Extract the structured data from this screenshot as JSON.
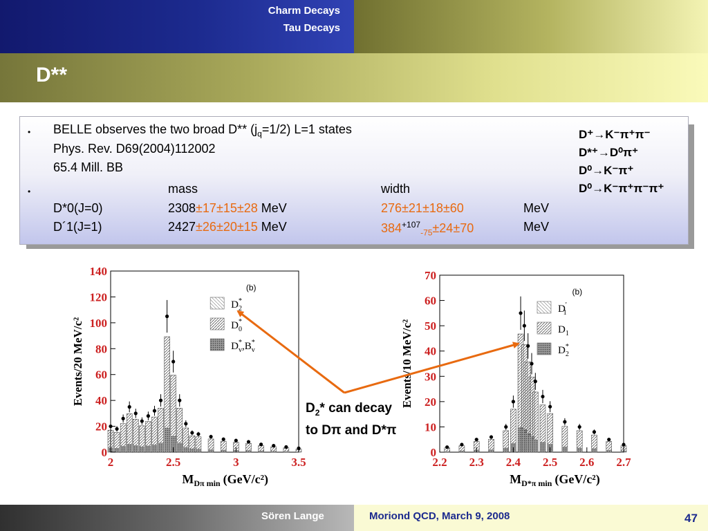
{
  "header": {
    "nav_items": [
      "Charm Decays",
      "Tau Decays"
    ],
    "title": "D**"
  },
  "infobox": {
    "line1_pre": "BELLE observes the two broad D** (j",
    "line1_sub": "q",
    "line1_post": "=1/2) L=1 states",
    "line2": "Phys. Rev. D69(2004)112002",
    "line3": "65.4 Mill. BB",
    "mass_header": "mass",
    "width_header": "width",
    "rows": [
      {
        "state": "D*0(J=0)",
        "mass_central": "2308",
        "mass_errors": "±17±15±28",
        "mass_unit": "MeV",
        "width_central": "276",
        "width_errors": "±21±18±60",
        "width_unit": "MeV"
      },
      {
        "state": "D´1(J=1)",
        "mass_central": "2427",
        "mass_errors": "±26±20±15",
        "mass_unit": "MeV",
        "width_central": "384",
        "width_sup": "+107",
        "width_sub": "-75",
        "width_errors": "±24±70",
        "width_unit": "MeV"
      }
    ]
  },
  "decay_modes": [
    "D⁺→K⁻π⁺π⁻",
    "D*⁺→D⁰π⁺",
    "D⁰→K⁻π⁺",
    "D⁰→K⁻π⁺π⁻π⁺"
  ],
  "annotation": {
    "line1_pre": "D",
    "line1_sub": "2",
    "line1_post": "* can decay",
    "line2": "to Dπ and D*π"
  },
  "colors": {
    "accent_orange": "#e86a10",
    "header_blue": "#1c2a8e",
    "plot_red": "#cc2020"
  },
  "chart_data": [
    {
      "type": "bar",
      "ylabel": "Events/20 MeV/c²",
      "xlabel": "M_Dπ min (GeV/c²)",
      "xlabel_main": "M",
      "xlabel_sub": "Dπ min",
      "xlabel_unit": "(GeV/c²)",
      "x_ticks": [
        "2",
        "2.5",
        "3",
        "3.5"
      ],
      "y_ticks": [
        "0",
        "20",
        "40",
        "60",
        "80",
        "100",
        "120",
        "140"
      ],
      "xlim": [
        2,
        3.5
      ],
      "ylim": [
        0,
        140
      ],
      "panel_label": "(b)",
      "legend": [
        {
          "label": "D*2",
          "main": "D",
          "sub": "2",
          "sup": "*"
        },
        {
          "label": "D*0",
          "main": "D",
          "sub": "0",
          "sup": "*"
        },
        {
          "label": "D*v,B*v",
          "main": "D",
          "sub": "v",
          "sup": "*",
          "extra": ",B",
          "extra_sub": "v",
          "extra_sup": "*"
        }
      ],
      "x": [
        2.0,
        2.05,
        2.1,
        2.15,
        2.2,
        2.25,
        2.3,
        2.35,
        2.4,
        2.45,
        2.5,
        2.55,
        2.6,
        2.65,
        2.7,
        2.8,
        2.9,
        3.0,
        3.1,
        3.2,
        3.3,
        3.4,
        3.5
      ],
      "values": [
        20,
        18,
        26,
        35,
        30,
        24,
        28,
        32,
        40,
        105,
        70,
        40,
        22,
        15,
        14,
        12,
        10,
        9,
        8,
        6,
        5,
        4,
        3
      ]
    },
    {
      "type": "bar",
      "ylabel": "Events/10 MeV/c²",
      "xlabel": "M_D*π min (GeV/c²)",
      "xlabel_main": "M",
      "xlabel_sub": "D*π min",
      "xlabel_unit": "(GeV/c²)",
      "x_ticks": [
        "2.2",
        "2.3",
        "2.4",
        "2.5",
        "2.6",
        "2.7"
      ],
      "y_ticks": [
        "0",
        "10",
        "20",
        "30",
        "40",
        "50",
        "60",
        "70"
      ],
      "xlim": [
        2.2,
        2.7
      ],
      "ylim": [
        0,
        70
      ],
      "panel_label": "(b)",
      "legend": [
        {
          "label": "D'1",
          "main": "D",
          "sub": "1",
          "sup": "'"
        },
        {
          "label": "D1",
          "main": "D",
          "sub": "1",
          "sup": ""
        },
        {
          "label": "D*2",
          "main": "D",
          "sub": "2",
          "sup": "*"
        }
      ],
      "x": [
        2.22,
        2.26,
        2.3,
        2.34,
        2.38,
        2.4,
        2.42,
        2.43,
        2.44,
        2.45,
        2.46,
        2.48,
        2.5,
        2.54,
        2.58,
        2.62,
        2.66,
        2.7
      ],
      "values": [
        2,
        3,
        5,
        6,
        10,
        20,
        55,
        50,
        42,
        35,
        28,
        22,
        18,
        12,
        10,
        8,
        5,
        3
      ]
    }
  ]
}
